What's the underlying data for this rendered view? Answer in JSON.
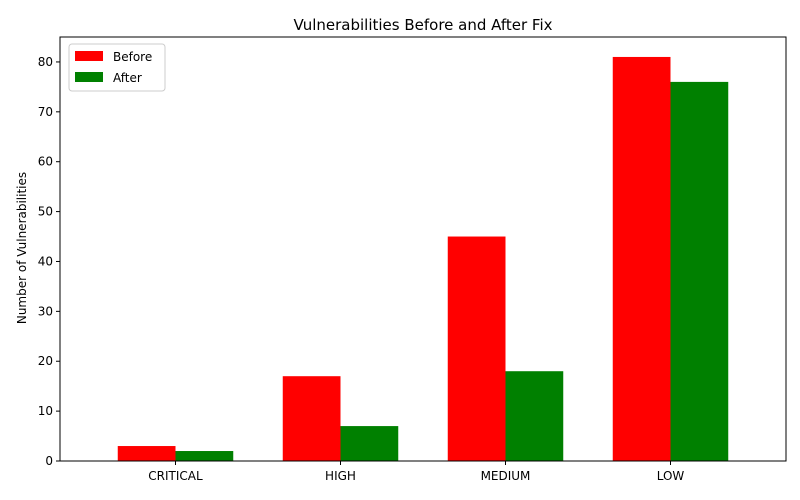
{
  "chart_data": {
    "type": "bar",
    "title": "Vulnerabilities Before and After Fix",
    "xlabel": "",
    "ylabel": "Number of Vulnerabilities",
    "categories": [
      "CRITICAL",
      "HIGH",
      "MEDIUM",
      "LOW"
    ],
    "series": [
      {
        "name": "Before",
        "color": "#ff0000",
        "values": [
          3,
          17,
          45,
          81
        ]
      },
      {
        "name": "After",
        "color": "#008000",
        "values": [
          2,
          7,
          18,
          76
        ]
      }
    ],
    "ylim": [
      0,
      85
    ],
    "yticks": [
      0,
      10,
      20,
      30,
      40,
      50,
      60,
      70,
      80
    ],
    "grid": false,
    "legend": "top-left"
  }
}
